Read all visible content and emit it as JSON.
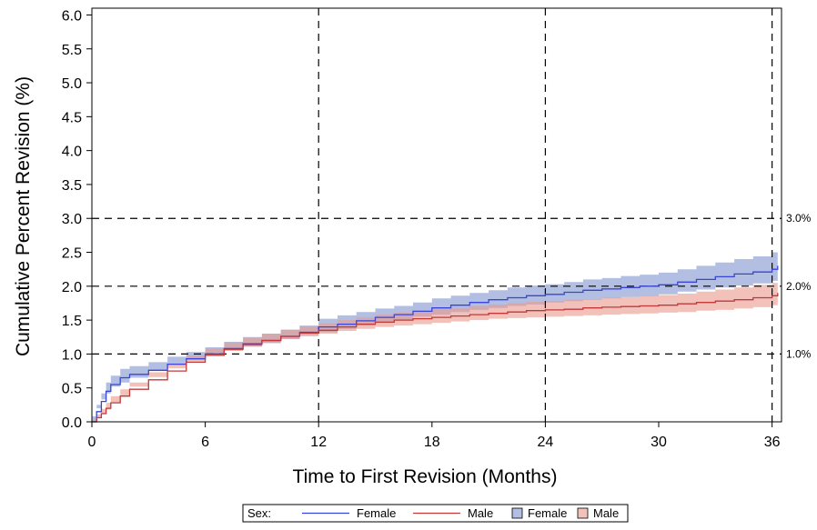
{
  "chart_data": {
    "type": "line",
    "xlabel": "Time to First Revision (Months)",
    "ylabel": "Cumulative Percent Revision (%)",
    "xlim": [
      0,
      36.5
    ],
    "ylim": [
      0,
      6.1
    ],
    "x_ticks": [
      0,
      6,
      12,
      18,
      24,
      30,
      36
    ],
    "x_tick_labels": [
      "0",
      "6",
      "12",
      "18",
      "24",
      "30",
      "36"
    ],
    "y_ticks": [
      0,
      0.5,
      1.0,
      1.5,
      2.0,
      2.5,
      3.0,
      3.5,
      4.0,
      4.5,
      5.0,
      5.5,
      6.0
    ],
    "y_tick_labels": [
      "0.0",
      "0.5",
      "1.0",
      "1.5",
      "2.0",
      "2.5",
      "3.0",
      "3.5",
      "4.0",
      "4.5",
      "5.0",
      "5.5",
      "6.0"
    ],
    "vertical_reference_lines": [
      12,
      24,
      36
    ],
    "horizontal_reference_lines": [
      {
        "value": 1.0,
        "label": "1.0%"
      },
      {
        "value": 2.0,
        "label": "2.0%"
      },
      {
        "value": 3.0,
        "label": "3.0%"
      }
    ],
    "series": [
      {
        "name": "Female",
        "line_color": "#3a44d6",
        "band_color": "#7f95cf",
        "x": [
          0,
          0.25,
          0.5,
          0.75,
          1,
          1.5,
          2,
          3,
          4,
          5,
          6,
          7,
          8,
          9,
          10,
          11,
          12,
          13,
          14,
          15,
          16,
          17,
          18,
          19,
          20,
          21,
          22,
          23,
          24,
          25,
          26,
          27,
          28,
          29,
          30,
          31,
          32,
          33,
          34,
          35,
          36,
          36.3
        ],
        "values": [
          0,
          0.15,
          0.3,
          0.45,
          0.55,
          0.65,
          0.7,
          0.76,
          0.85,
          0.93,
          1.0,
          1.08,
          1.15,
          1.2,
          1.26,
          1.32,
          1.4,
          1.44,
          1.49,
          1.54,
          1.58,
          1.63,
          1.68,
          1.72,
          1.76,
          1.8,
          1.83,
          1.86,
          1.88,
          1.91,
          1.94,
          1.96,
          1.98,
          2.0,
          2.02,
          2.06,
          2.1,
          2.14,
          2.18,
          2.21,
          2.25,
          2.3
        ],
        "lower": [
          0,
          0.08,
          0.2,
          0.33,
          0.42,
          0.52,
          0.58,
          0.65,
          0.75,
          0.84,
          0.91,
          0.98,
          1.05,
          1.11,
          1.16,
          1.22,
          1.28,
          1.32,
          1.37,
          1.42,
          1.46,
          1.5,
          1.55,
          1.58,
          1.62,
          1.65,
          1.68,
          1.71,
          1.73,
          1.76,
          1.78,
          1.8,
          1.82,
          1.84,
          1.85,
          1.88,
          1.92,
          1.95,
          1.98,
          2.01,
          2.04,
          2.08
        ],
        "upper": [
          0,
          0.25,
          0.42,
          0.58,
          0.68,
          0.78,
          0.82,
          0.88,
          0.96,
          1.03,
          1.1,
          1.18,
          1.25,
          1.3,
          1.36,
          1.42,
          1.52,
          1.57,
          1.62,
          1.67,
          1.71,
          1.76,
          1.82,
          1.86,
          1.9,
          1.94,
          1.98,
          2.01,
          2.03,
          2.06,
          2.1,
          2.12,
          2.15,
          2.17,
          2.2,
          2.25,
          2.3,
          2.35,
          2.4,
          2.44,
          2.5,
          2.55
        ]
      },
      {
        "name": "Male",
        "line_color": "#c03a3a",
        "band_color": "#ea9a8c",
        "x": [
          0,
          0.25,
          0.5,
          0.75,
          1,
          1.5,
          2,
          3,
          4,
          5,
          6,
          7,
          8,
          9,
          10,
          11,
          12,
          13,
          14,
          15,
          16,
          17,
          18,
          19,
          20,
          21,
          22,
          23,
          24,
          25,
          26,
          27,
          28,
          29,
          30,
          31,
          32,
          33,
          34,
          35,
          36,
          36.3
        ],
        "values": [
          0,
          0.06,
          0.12,
          0.2,
          0.28,
          0.38,
          0.48,
          0.62,
          0.75,
          0.88,
          0.98,
          1.07,
          1.14,
          1.2,
          1.26,
          1.31,
          1.35,
          1.4,
          1.44,
          1.47,
          1.5,
          1.52,
          1.54,
          1.56,
          1.58,
          1.6,
          1.62,
          1.64,
          1.65,
          1.66,
          1.68,
          1.69,
          1.7,
          1.71,
          1.72,
          1.74,
          1.76,
          1.78,
          1.8,
          1.83,
          1.86,
          1.9
        ],
        "lower": [
          0,
          0.02,
          0.06,
          0.12,
          0.18,
          0.28,
          0.38,
          0.52,
          0.66,
          0.79,
          0.89,
          0.98,
          1.05,
          1.11,
          1.17,
          1.22,
          1.26,
          1.3,
          1.34,
          1.37,
          1.4,
          1.42,
          1.44,
          1.46,
          1.48,
          1.5,
          1.52,
          1.53,
          1.54,
          1.55,
          1.56,
          1.57,
          1.58,
          1.59,
          1.6,
          1.61,
          1.62,
          1.64,
          1.65,
          1.67,
          1.69,
          1.72
        ],
        "upper": [
          0,
          0.11,
          0.19,
          0.28,
          0.38,
          0.48,
          0.58,
          0.73,
          0.86,
          0.98,
          1.08,
          1.17,
          1.24,
          1.3,
          1.36,
          1.41,
          1.45,
          1.5,
          1.54,
          1.58,
          1.61,
          1.64,
          1.66,
          1.68,
          1.71,
          1.73,
          1.75,
          1.77,
          1.78,
          1.8,
          1.81,
          1.83,
          1.84,
          1.85,
          1.87,
          1.89,
          1.92,
          1.95,
          1.98,
          2.02,
          2.05,
          2.1
        ]
      }
    ],
    "legend": {
      "placement": "bottom",
      "title": "Sex:",
      "entries": [
        {
          "kind": "line",
          "label": "Female",
          "series": "Female"
        },
        {
          "kind": "line",
          "label": "Male",
          "series": "Male"
        },
        {
          "kind": "band",
          "label": "Female",
          "series": "Female"
        },
        {
          "kind": "band",
          "label": "Male",
          "series": "Male"
        }
      ]
    }
  }
}
